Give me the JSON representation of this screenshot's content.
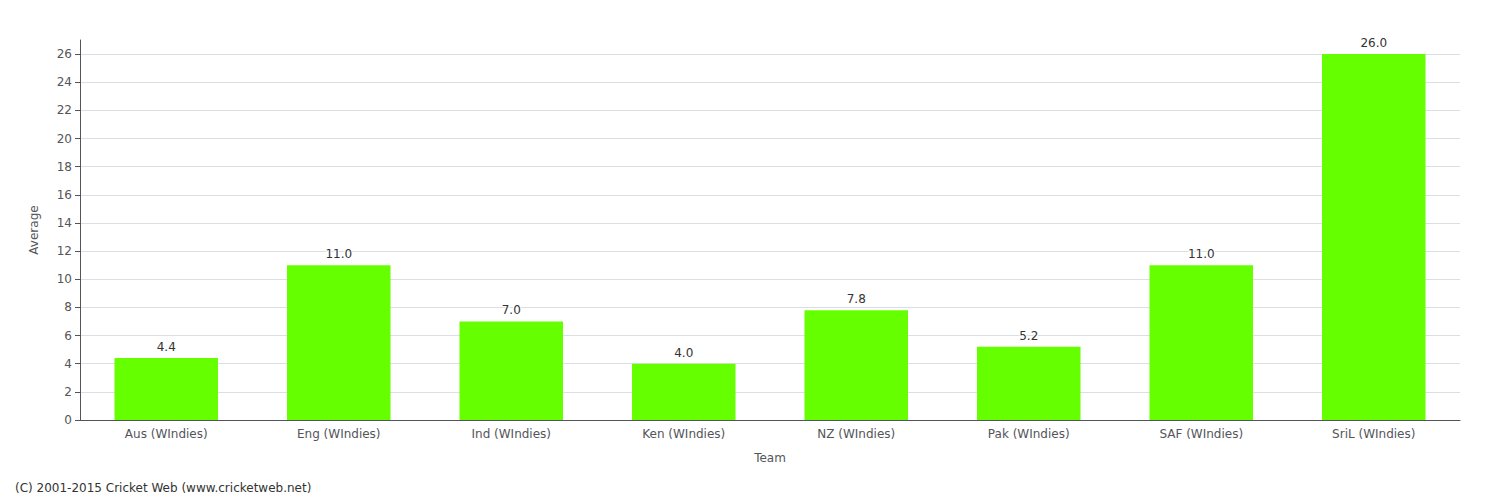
{
  "chart_data": {
    "type": "bar",
    "categories": [
      "Aus (WIndies)",
      "Eng (WIndies)",
      "Ind (WIndies)",
      "Ken (WIndies)",
      "NZ (WIndies)",
      "Pak (WIndies)",
      "SAF (WIndies)",
      "SriL (WIndies)"
    ],
    "values": [
      4.4,
      11.0,
      7.0,
      4.0,
      7.8,
      5.2,
      11.0,
      26.0
    ],
    "value_labels": [
      "4.4",
      "11.0",
      "7.0",
      "4.0",
      "7.8",
      "5.2",
      "11.0",
      "26.0"
    ],
    "data_labels": true,
    "color": "#66ff00",
    "xlabel": "Team",
    "ylabel": "Average",
    "ylim": [
      0,
      27
    ],
    "yticks": [
      0,
      2,
      4,
      6,
      8,
      10,
      12,
      14,
      16,
      18,
      20,
      22,
      24,
      26
    ],
    "grid": true,
    "annotations": [
      "(C) 2001-2015 Cricket Web (www.cricketweb.net)"
    ]
  }
}
